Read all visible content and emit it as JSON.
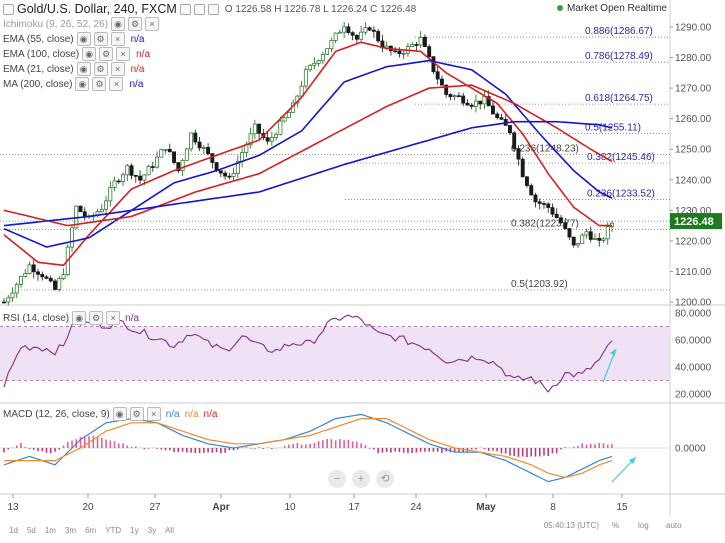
{
  "header": {
    "symbol": "Gold/U.S. Dollar, 240, FXCM",
    "ohlc": "O 1226.58  H 1226.78  L 1226.24  C 1226.48",
    "status": "Market Open Realtime"
  },
  "indicators": [
    {
      "label": "Ichimoku (9, 26, 52, 26)",
      "value": "",
      "color": "#999999"
    },
    {
      "label": "EMA (55, close)",
      "value": "n/a",
      "color": "#1515cc"
    },
    {
      "label": "EMA (100, close)",
      "value": "n/a",
      "color": "#d32020"
    },
    {
      "label": "EMA (21, close)",
      "value": "n/a",
      "color": "#d32020"
    },
    {
      "label": "MA (200, close)",
      "value": "n/a",
      "color": "#1515cc"
    }
  ],
  "price_tag": "1226.48",
  "rsi_panel": {
    "label": "RSI (14, close)",
    "value": "n/a"
  },
  "macd_panel": {
    "label": "MACD (12, 26, close, 9)",
    "values": [
      "n/a",
      "n/a",
      "n/a"
    ]
  },
  "timeframes": [
    "1d",
    "5d",
    "1m",
    "3m",
    "6m",
    "YTD",
    "1y",
    "3y",
    "All"
  ],
  "clock": "05:40:13 (UTC)",
  "scale_buttons": [
    "%",
    "log",
    "auto"
  ],
  "nav_buttons": [
    "−",
    "+",
    "⟲"
  ],
  "chart_data": [
    {
      "type": "candlestick",
      "title": "Gold/U.S. Dollar, 240, FXCM",
      "x_tick_labels": [
        "13",
        "20",
        "27",
        "Apr",
        "10",
        "17",
        "24",
        "May",
        "8",
        "15"
      ],
      "y_tick_labels": [
        "1200.00",
        "1210.00",
        "1220.00",
        "1230.00",
        "1240.00",
        "1250.00",
        "1260.00",
        "1270.00",
        "1280.00",
        "1290.00"
      ],
      "ylim": [
        1190,
        1300
      ],
      "last_price": 1226.48,
      "close_path": [
        [
          0,
          1200
        ],
        [
          3,
          1206
        ],
        [
          6,
          1212
        ],
        [
          9,
          1209
        ],
        [
          12,
          1204
        ],
        [
          14,
          1210
        ],
        [
          17,
          1231
        ],
        [
          20,
          1227
        ],
        [
          23,
          1231
        ],
        [
          26,
          1239
        ],
        [
          29,
          1244
        ],
        [
          32,
          1240
        ],
        [
          35,
          1245
        ],
        [
          38,
          1251
        ],
        [
          41,
          1243
        ],
        [
          44,
          1255
        ],
        [
          47,
          1250
        ],
        [
          50,
          1244
        ],
        [
          53,
          1240
        ],
        [
          56,
          1249
        ],
        [
          59,
          1257
        ],
        [
          62,
          1252
        ],
        [
          65,
          1258
        ],
        [
          68,
          1264
        ],
        [
          71,
          1275
        ],
        [
          74,
          1280
        ],
        [
          77,
          1285
        ],
        [
          80,
          1291
        ],
        [
          83,
          1286
        ],
        [
          86,
          1290
        ],
        [
          89,
          1284
        ],
        [
          92,
          1281
        ],
        [
          95,
          1283
        ],
        [
          98,
          1286
        ],
        [
          101,
          1276
        ],
        [
          104,
          1268
        ],
        [
          107,
          1267
        ],
        [
          110,
          1265
        ],
        [
          113,
          1266
        ],
        [
          116,
          1260
        ],
        [
          119,
          1256
        ],
        [
          122,
          1242
        ],
        [
          125,
          1233
        ],
        [
          128,
          1231
        ],
        [
          131,
          1226
        ],
        [
          134,
          1218
        ],
        [
          137,
          1223
        ],
        [
          140,
          1219
        ],
        [
          143,
          1226
        ]
      ],
      "series": [
        {
          "name": "EMA (21, close)",
          "color": "#d32020",
          "points": [
            [
              0,
              1222
            ],
            [
              8,
              1213
            ],
            [
              14,
              1212
            ],
            [
              20,
              1222
            ],
            [
              30,
              1237
            ],
            [
              40,
              1243
            ],
            [
              50,
              1248
            ],
            [
              60,
              1253
            ],
            [
              70,
              1267
            ],
            [
              78,
              1282
            ],
            [
              84,
              1285
            ],
            [
              90,
              1283
            ],
            [
              98,
              1282
            ],
            [
              104,
              1275
            ],
            [
              110,
              1270
            ],
            [
              116,
              1265
            ],
            [
              122,
              1255
            ],
            [
              128,
              1242
            ],
            [
              134,
              1231
            ],
            [
              140,
              1225
            ],
            [
              143,
              1225
            ]
          ]
        },
        {
          "name": "EMA (55, close)",
          "color": "#1515cc",
          "points": [
            [
              0,
              1224
            ],
            [
              10,
              1218
            ],
            [
              20,
              1221
            ],
            [
              30,
              1230
            ],
            [
              40,
              1239
            ],
            [
              50,
              1243
            ],
            [
              60,
              1248
            ],
            [
              70,
              1256
            ],
            [
              80,
              1272
            ],
            [
              90,
              1277
            ],
            [
              100,
              1279
            ],
            [
              110,
              1276
            ],
            [
              118,
              1268
            ],
            [
              126,
              1255
            ],
            [
              134,
              1243
            ],
            [
              140,
              1236
            ],
            [
              143,
              1234
            ]
          ]
        },
        {
          "name": "EMA (100, close)",
          "color": "#d32020",
          "points": [
            [
              0,
              1230
            ],
            [
              15,
              1225
            ],
            [
              30,
              1228
            ],
            [
              45,
              1236
            ],
            [
              60,
              1242
            ],
            [
              75,
              1253
            ],
            [
              90,
              1264
            ],
            [
              100,
              1270
            ],
            [
              110,
              1271
            ],
            [
              120,
              1265
            ],
            [
              130,
              1257
            ],
            [
              138,
              1250
            ],
            [
              143,
              1246
            ]
          ]
        },
        {
          "name": "MA (200, close)",
          "color": "#1515cc",
          "points": [
            [
              0,
              1225
            ],
            [
              20,
              1228
            ],
            [
              40,
              1232
            ],
            [
              60,
              1236
            ],
            [
              80,
              1245
            ],
            [
              100,
              1253
            ],
            [
              110,
              1257
            ],
            [
              120,
              1259
            ],
            [
              130,
              1259
            ],
            [
              140,
              1258
            ],
            [
              143,
              1257
            ]
          ]
        }
      ],
      "fibonacci": [
        {
          "ratio": "0.886",
          "price": 1286.67,
          "label": "0.886(1286.67)"
        },
        {
          "ratio": "0.786",
          "price": 1278.49,
          "label": "0.786(1278.49)"
        },
        {
          "ratio": "0.618",
          "price": 1264.75,
          "label": "0.618(1264.75)"
        },
        {
          "ratio": "0.5",
          "price": 1255.11,
          "label": "0.5(1255.11)"
        },
        {
          "ratio": "0.382",
          "price": 1245.46,
          "label": "0.382(1245.46)"
        },
        {
          "ratio": "0.236",
          "price": 1233.52,
          "label": "0.236(1233.52)"
        },
        {
          "ratio": "0.236",
          "price": 1248.23,
          "label": "0.236(1248.23)"
        },
        {
          "ratio": "0.382",
          "price": 1223.77,
          "label": "0.382(1223.77)"
        },
        {
          "ratio": "0.5",
          "price": 1203.92,
          "label": "0.5(1203.92)"
        }
      ]
    },
    {
      "type": "line",
      "title": "RSI (14, close)",
      "y_tick_labels": [
        "20.0000",
        "40.0000",
        "60.0000",
        "80.0000"
      ],
      "ylim": [
        15,
        85
      ],
      "band": [
        30,
        70
      ],
      "points": [
        [
          0,
          27
        ],
        [
          4,
          55
        ],
        [
          8,
          55
        ],
        [
          12,
          52
        ],
        [
          14,
          55
        ],
        [
          16,
          73
        ],
        [
          20,
          72
        ],
        [
          24,
          71
        ],
        [
          28,
          73
        ],
        [
          32,
          66
        ],
        [
          36,
          62
        ],
        [
          40,
          56
        ],
        [
          44,
          66
        ],
        [
          48,
          57
        ],
        [
          52,
          52
        ],
        [
          56,
          63
        ],
        [
          60,
          55
        ],
        [
          64,
          52
        ],
        [
          68,
          58
        ],
        [
          72,
          57
        ],
        [
          76,
          71
        ],
        [
          80,
          78
        ],
        [
          84,
          75
        ],
        [
          88,
          64
        ],
        [
          92,
          62
        ],
        [
          96,
          58
        ],
        [
          100,
          54
        ],
        [
          104,
          45
        ],
        [
          108,
          46
        ],
        [
          112,
          48
        ],
        [
          116,
          42
        ],
        [
          120,
          30
        ],
        [
          124,
          32
        ],
        [
          128,
          23
        ],
        [
          132,
          35
        ],
        [
          136,
          34
        ],
        [
          140,
          45
        ],
        [
          143,
          58
        ]
      ]
    },
    {
      "type": "line",
      "title": "MACD (12, 26, close, 9)",
      "y_tick_labels": [
        "0.0000"
      ],
      "ylim": [
        -10,
        10
      ],
      "series": [
        {
          "name": "MACD",
          "color": "#3a86d6",
          "points": [
            [
              0,
              -4
            ],
            [
              6,
              -2
            ],
            [
              12,
              -4
            ],
            [
              18,
              2
            ],
            [
              24,
              6
            ],
            [
              30,
              7
            ],
            [
              36,
              6
            ],
            [
              42,
              3
            ],
            [
              48,
              1
            ],
            [
              54,
              0
            ],
            [
              60,
              1
            ],
            [
              66,
              2
            ],
            [
              72,
              4
            ],
            [
              78,
              7
            ],
            [
              84,
              8
            ],
            [
              90,
              6
            ],
            [
              96,
              3
            ],
            [
              100,
              1
            ],
            [
              106,
              -1
            ],
            [
              112,
              -1
            ],
            [
              118,
              -3
            ],
            [
              124,
              -6
            ],
            [
              128,
              -8
            ],
            [
              132,
              -7
            ],
            [
              136,
              -5
            ],
            [
              140,
              -3
            ],
            [
              143,
              -2
            ]
          ]
        },
        {
          "name": "Signal",
          "color": "#f08a2a",
          "points": [
            [
              0,
              -3
            ],
            [
              6,
              -3
            ],
            [
              12,
              -3
            ],
            [
              18,
              0
            ],
            [
              24,
              4
            ],
            [
              30,
              6
            ],
            [
              36,
              6
            ],
            [
              42,
              4
            ],
            [
              48,
              2
            ],
            [
              54,
              1
            ],
            [
              60,
              1
            ],
            [
              66,
              2
            ],
            [
              72,
              3
            ],
            [
              78,
              5
            ],
            [
              84,
              7
            ],
            [
              90,
              7
            ],
            [
              96,
              4
            ],
            [
              100,
              2
            ],
            [
              106,
              0
            ],
            [
              112,
              -1
            ],
            [
              118,
              -2
            ],
            [
              124,
              -4
            ],
            [
              128,
              -6
            ],
            [
              132,
              -7
            ],
            [
              136,
              -6
            ],
            [
              140,
              -4
            ],
            [
              143,
              -3
            ]
          ]
        }
      ],
      "histogram": [
        [
          0,
          -1
        ],
        [
          4,
          1
        ],
        [
          8,
          -1
        ],
        [
          12,
          -1
        ],
        [
          16,
          2
        ],
        [
          20,
          3
        ],
        [
          24,
          2
        ],
        [
          28,
          1
        ],
        [
          32,
          0
        ],
        [
          36,
          0
        ],
        [
          40,
          -1
        ],
        [
          44,
          -1
        ],
        [
          48,
          -1
        ],
        [
          52,
          -1
        ],
        [
          56,
          0
        ],
        [
          60,
          0
        ],
        [
          64,
          0
        ],
        [
          68,
          1
        ],
        [
          72,
          1
        ],
        [
          76,
          2
        ],
        [
          80,
          2
        ],
        [
          84,
          1
        ],
        [
          88,
          -1
        ],
        [
          92,
          -1
        ],
        [
          96,
          -1
        ],
        [
          100,
          -1
        ],
        [
          104,
          -1
        ],
        [
          108,
          -1
        ],
        [
          112,
          0
        ],
        [
          116,
          -1
        ],
        [
          120,
          -2
        ],
        [
          124,
          -2
        ],
        [
          128,
          -2
        ],
        [
          132,
          0
        ],
        [
          136,
          1
        ],
        [
          140,
          1
        ],
        [
          143,
          1
        ]
      ]
    }
  ]
}
